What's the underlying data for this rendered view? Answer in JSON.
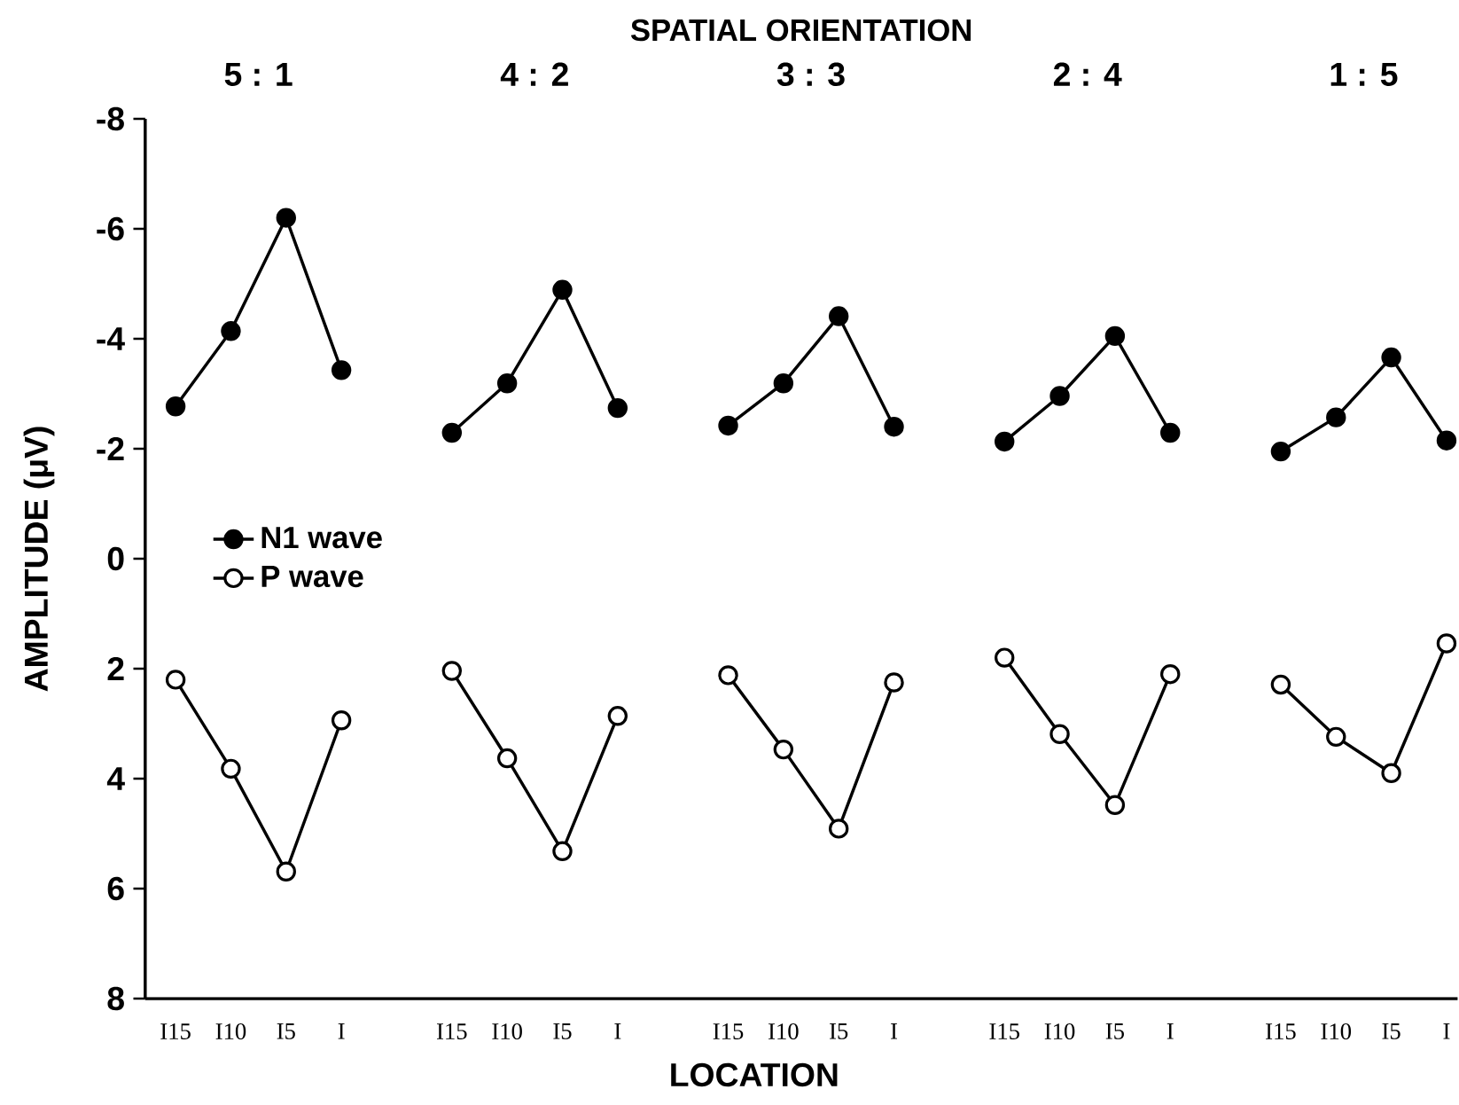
{
  "chart_data": {
    "type": "line",
    "title": "SPATIAL ORIENTATION",
    "xlabel": "LOCATION",
    "ylabel": "AMPLITUDE (μV)",
    "annotations": [
      "5 : 1",
      "4 : 2",
      "3 : 3",
      "2 : 4",
      "1 : 5"
    ],
    "categories": [
      "I15",
      "I10",
      "I5",
      "I",
      null,
      "I15",
      "I10",
      "I5",
      "I",
      null,
      "I15",
      "I10",
      "I5",
      "I",
      null,
      "I15",
      "I10",
      "I5",
      "I",
      null,
      "I15",
      "I10",
      "I5",
      "I"
    ],
    "series": [
      {
        "name": "N1 wave",
        "color": "#000000",
        "values": [
          -2.77,
          -4.14,
          -6.2,
          -3.43,
          null,
          -2.29,
          -3.19,
          -4.89,
          -2.74,
          null,
          -2.42,
          -3.19,
          -4.41,
          -2.4,
          null,
          -2.13,
          -2.96,
          -4.05,
          -2.29,
          null,
          -1.95,
          -2.57,
          -3.66,
          -2.15
        ]
      },
      {
        "name": "P wave",
        "color": "#000000",
        "values": [
          2.2,
          3.82,
          5.69,
          2.94,
          null,
          2.04,
          3.63,
          5.32,
          2.86,
          null,
          2.12,
          3.47,
          4.91,
          2.25,
          null,
          1.8,
          3.19,
          4.48,
          2.1,
          null,
          2.29,
          3.24,
          3.9,
          1.54
        ]
      }
    ],
    "ylim": [
      8,
      -8
    ],
    "yticks": [
      -8,
      -6,
      -4,
      -2,
      0,
      2,
      4,
      6,
      8
    ],
    "grid": false,
    "legend": "left",
    "marker": "circle",
    "line_style": "solid"
  }
}
